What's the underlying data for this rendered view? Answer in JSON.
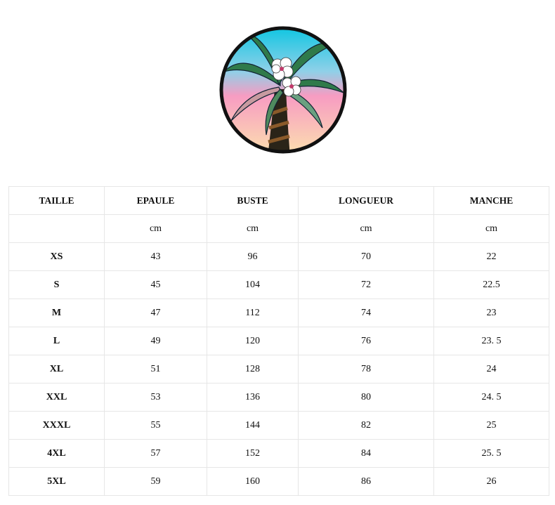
{
  "logo": {
    "name": "palm-tree-logo",
    "colors": {
      "sky_top": "#1ec8e0",
      "sky_mid": "#f7a1c4",
      "sky_bottom": "#fbd9b0",
      "border": "#111111"
    }
  },
  "table": {
    "headers": [
      "TAILLE",
      "EPAULE",
      "BUSTE",
      "LONGUEUR",
      "MANCHE"
    ],
    "units": [
      "",
      "cm",
      "cm",
      "cm",
      "cm"
    ],
    "rows": [
      [
        "XS",
        "43",
        "96",
        "70",
        "22"
      ],
      [
        "S",
        "45",
        "104",
        "72",
        "22.5"
      ],
      [
        "M",
        "47",
        "112",
        "74",
        "23"
      ],
      [
        "L",
        "49",
        "120",
        "76",
        "23. 5"
      ],
      [
        "XL",
        "51",
        "128",
        "78",
        "24"
      ],
      [
        "XXL",
        "53",
        "136",
        "80",
        "24. 5"
      ],
      [
        "XXXL",
        "55",
        "144",
        "82",
        "25"
      ],
      [
        "4XL",
        "57",
        "152",
        "84",
        "25. 5"
      ],
      [
        "5XL",
        "59",
        "160",
        "86",
        "26"
      ]
    ]
  }
}
